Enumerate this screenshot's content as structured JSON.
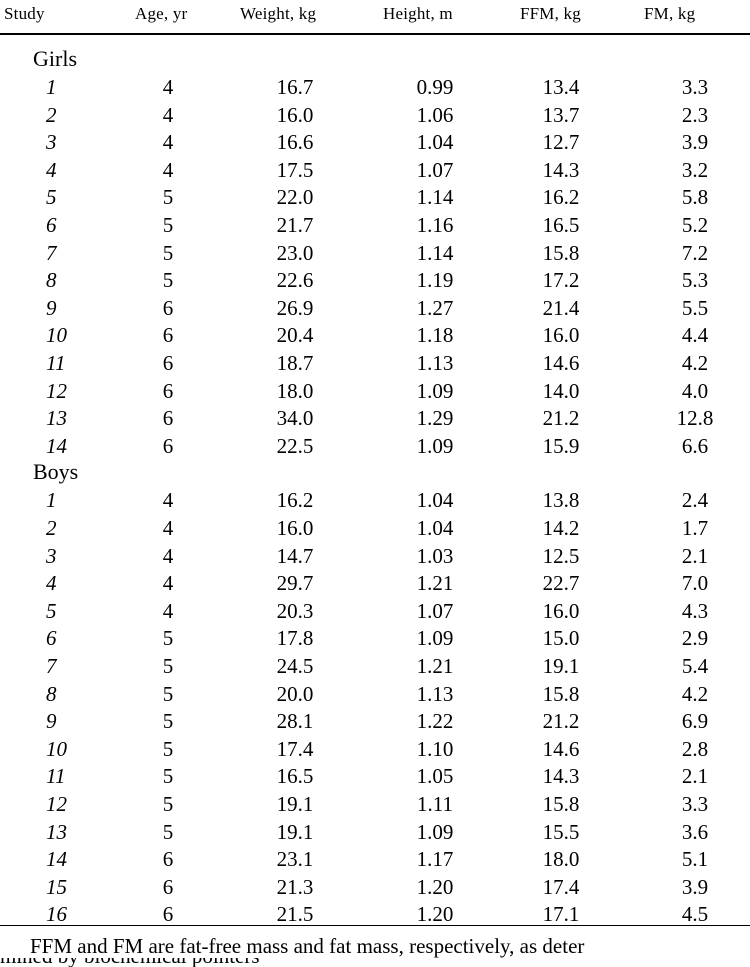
{
  "table": {
    "headers": {
      "study": "Study",
      "age": "Age, yr",
      "weight": "Weight, kg",
      "height": "Height, m",
      "ffm": "FFM, kg",
      "fm": "FM, kg"
    },
    "groups": [
      {
        "label": "Girls",
        "rows": [
          {
            "study": "1",
            "age": "4",
            "weight": "16.7",
            "height": "0.99",
            "ffm": "13.4",
            "fm": "3.3"
          },
          {
            "study": "2",
            "age": "4",
            "weight": "16.0",
            "height": "1.06",
            "ffm": "13.7",
            "fm": "2.3"
          },
          {
            "study": "3",
            "age": "4",
            "weight": "16.6",
            "height": "1.04",
            "ffm": "12.7",
            "fm": "3.9"
          },
          {
            "study": "4",
            "age": "4",
            "weight": "17.5",
            "height": "1.07",
            "ffm": "14.3",
            "fm": "3.2"
          },
          {
            "study": "5",
            "age": "5",
            "weight": "22.0",
            "height": "1.14",
            "ffm": "16.2",
            "fm": "5.8"
          },
          {
            "study": "6",
            "age": "5",
            "weight": "21.7",
            "height": "1.16",
            "ffm": "16.5",
            "fm": "5.2"
          },
          {
            "study": "7",
            "age": "5",
            "weight": "23.0",
            "height": "1.14",
            "ffm": "15.8",
            "fm": "7.2"
          },
          {
            "study": "8",
            "age": "5",
            "weight": "22.6",
            "height": "1.19",
            "ffm": "17.2",
            "fm": "5.3"
          },
          {
            "study": "9",
            "age": "6",
            "weight": "26.9",
            "height": "1.27",
            "ffm": "21.4",
            "fm": "5.5"
          },
          {
            "study": "10",
            "age": "6",
            "weight": "20.4",
            "height": "1.18",
            "ffm": "16.0",
            "fm": "4.4"
          },
          {
            "study": "11",
            "age": "6",
            "weight": "18.7",
            "height": "1.13",
            "ffm": "14.6",
            "fm": "4.2"
          },
          {
            "study": "12",
            "age": "6",
            "weight": "18.0",
            "height": "1.09",
            "ffm": "14.0",
            "fm": "4.0"
          },
          {
            "study": "13",
            "age": "6",
            "weight": "34.0",
            "height": "1.29",
            "ffm": "21.2",
            "fm": "12.8"
          },
          {
            "study": "14",
            "age": "6",
            "weight": "22.5",
            "height": "1.09",
            "ffm": "15.9",
            "fm": "6.6"
          }
        ]
      },
      {
        "label": "Boys",
        "rows": [
          {
            "study": "1",
            "age": "4",
            "weight": "16.2",
            "height": "1.04",
            "ffm": "13.8",
            "fm": "2.4"
          },
          {
            "study": "2",
            "age": "4",
            "weight": "16.0",
            "height": "1.04",
            "ffm": "14.2",
            "fm": "1.7"
          },
          {
            "study": "3",
            "age": "4",
            "weight": "14.7",
            "height": "1.03",
            "ffm": "12.5",
            "fm": "2.1"
          },
          {
            "study": "4",
            "age": "4",
            "weight": "29.7",
            "height": "1.21",
            "ffm": "22.7",
            "fm": "7.0"
          },
          {
            "study": "5",
            "age": "4",
            "weight": "20.3",
            "height": "1.07",
            "ffm": "16.0",
            "fm": "4.3"
          },
          {
            "study": "6",
            "age": "5",
            "weight": "17.8",
            "height": "1.09",
            "ffm": "15.0",
            "fm": "2.9"
          },
          {
            "study": "7",
            "age": "5",
            "weight": "24.5",
            "height": "1.21",
            "ffm": "19.1",
            "fm": "5.4"
          },
          {
            "study": "8",
            "age": "5",
            "weight": "20.0",
            "height": "1.13",
            "ffm": "15.8",
            "fm": "4.2"
          },
          {
            "study": "9",
            "age": "5",
            "weight": "28.1",
            "height": "1.22",
            "ffm": "21.2",
            "fm": "6.9"
          },
          {
            "study": "10",
            "age": "5",
            "weight": "17.4",
            "height": "1.10",
            "ffm": "14.6",
            "fm": "2.8"
          },
          {
            "study": "11",
            "age": "5",
            "weight": "16.5",
            "height": "1.05",
            "ffm": "14.3",
            "fm": "2.1"
          },
          {
            "study": "12",
            "age": "5",
            "weight": "19.1",
            "height": "1.11",
            "ffm": "15.8",
            "fm": "3.3"
          },
          {
            "study": "13",
            "age": "5",
            "weight": "19.1",
            "height": "1.09",
            "ffm": "15.5",
            "fm": "3.6"
          },
          {
            "study": "14",
            "age": "6",
            "weight": "23.1",
            "height": "1.17",
            "ffm": "18.0",
            "fm": "5.1"
          },
          {
            "study": "15",
            "age": "6",
            "weight": "21.3",
            "height": "1.20",
            "ffm": "17.4",
            "fm": "3.9"
          },
          {
            "study": "16",
            "age": "6",
            "weight": "21.5",
            "height": "1.20",
            "ffm": "17.1",
            "fm": "4.5"
          }
        ]
      }
    ]
  },
  "footnote": {
    "line1": "FFM and FM are fat-free mass and fat mass, respectively, as deter",
    "line2": "mined by biochemical pointers"
  }
}
